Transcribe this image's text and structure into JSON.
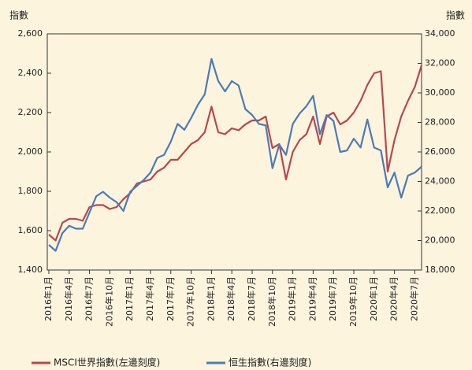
{
  "chart_data": {
    "type": "line",
    "y_label": "指數",
    "y2_label": "指數",
    "categories": [
      "2016年1月",
      null,
      null,
      "2016年4月",
      null,
      null,
      "2016年7月",
      null,
      null,
      "2016年10月",
      null,
      null,
      "2017年1月",
      null,
      null,
      "2017年4月",
      null,
      null,
      "2017年7月",
      null,
      null,
      "2017年10月",
      null,
      null,
      "2018年1月",
      null,
      null,
      "2018年4月",
      null,
      null,
      "2018年7月",
      null,
      null,
      "2018年10月",
      null,
      null,
      "2019年1月",
      null,
      null,
      "2019年4月",
      null,
      null,
      "2019年7月",
      null,
      null,
      "2019年10月",
      null,
      null,
      "2020年1月",
      null,
      null,
      "2020年4月",
      null,
      null,
      "2020年7月",
      null
    ],
    "series": [
      {
        "name": "MSCI世界指數(左邊刻度)",
        "color": "#b8474c",
        "values": [
          1580,
          1550,
          1640,
          1660,
          1660,
          1650,
          1720,
          1730,
          1730,
          1710,
          1720,
          1760,
          1790,
          1840,
          1850,
          1860,
          1900,
          1920,
          1960,
          1960,
          2000,
          2040,
          2060,
          2100,
          2230,
          2100,
          2090,
          2120,
          2110,
          2140,
          2160,
          2160,
          2180,
          2020,
          2040,
          1860,
          2000,
          2060,
          2090,
          2180,
          2040,
          2180,
          2200,
          2140,
          2160,
          2200,
          2260,
          2340,
          2400,
          2410,
          1900,
          2060,
          2180,
          2260,
          2330,
          2440
        ]
      },
      {
        "name": "恒生指數(右邊刻度)",
        "color": "#4a7bb7",
        "axis": "y2",
        "values": [
          19700,
          19300,
          20500,
          21000,
          20800,
          20800,
          21900,
          23000,
          23300,
          22900,
          22600,
          22000,
          23300,
          23700,
          24100,
          24600,
          25600,
          25800,
          26700,
          27900,
          27500,
          28300,
          29200,
          29900,
          32300,
          30800,
          30100,
          30800,
          30500,
          28900,
          28500,
          27900,
          27800,
          24900,
          26500,
          25800,
          27900,
          28600,
          29100,
          29800,
          27200,
          28500,
          28100,
          26000,
          26100,
          26900,
          26300,
          28200,
          26300,
          26100,
          23600,
          24600,
          22900,
          24400,
          24600,
          25000
        ]
      }
    ],
    "ylim": [
      1400,
      2600
    ],
    "yticks": [
      {
        "value": 1400,
        "label": "1,400"
      },
      {
        "value": 1600,
        "label": "1,600"
      },
      {
        "value": 1800,
        "label": "1,800"
      },
      {
        "value": 2000,
        "label": "2,000"
      },
      {
        "value": 2200,
        "label": "2,200"
      },
      {
        "value": 2400,
        "label": "2,400"
      },
      {
        "value": 2600,
        "label": "2,600"
      }
    ],
    "y2lim": [
      18000,
      34000
    ],
    "y2ticks": [
      {
        "value": 18000,
        "label": "18,000"
      },
      {
        "value": 20000,
        "label": "20,000"
      },
      {
        "value": 22000,
        "label": "22,000"
      },
      {
        "value": 24000,
        "label": "24,000"
      },
      {
        "value": 26000,
        "label": "26,000"
      },
      {
        "value": 28000,
        "label": "28,000"
      },
      {
        "value": 30000,
        "label": "30,000"
      },
      {
        "value": 32000,
        "label": "32,000"
      },
      {
        "value": 34000,
        "label": "34,000"
      }
    ],
    "legend": "bottom"
  }
}
